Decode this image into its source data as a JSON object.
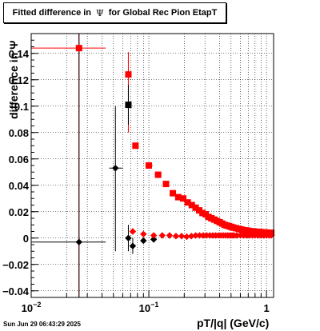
{
  "title": {
    "prefix": "Fitted difference in",
    "symbol": "Ψ",
    "suffix": "for Global Rec Pion EtapT"
  },
  "timestamp": "Sun Jun 29 06:43:29 2025",
  "chart_data": {
    "type": "scatter",
    "xlabel": "pT/|q| (GeV/c)",
    "ylabel": "difference in Ψ",
    "xscale": "log",
    "xlim": [
      0.01,
      1.15
    ],
    "ylim": [
      -0.045,
      0.155
    ],
    "grid": true,
    "x_ticks": [
      {
        "value": 0.01,
        "base": "10",
        "exp": "−2"
      },
      {
        "value": 0.1,
        "base": "10",
        "exp": "−1"
      },
      {
        "value": 1,
        "base": "1",
        "exp": ""
      }
    ],
    "y_ticks": [
      -0.04,
      -0.02,
      0,
      0.02,
      0.04,
      0.06,
      0.08,
      0.1,
      0.12,
      0.14
    ],
    "y_tick_labels": [
      "−0.04",
      "−0.02",
      "0",
      "0.02",
      "0.04",
      "0.06",
      "0.08",
      "0.1",
      "0.12",
      "0.14"
    ],
    "series": [
      {
        "color": "#ff0000",
        "marker": "square",
        "points": [
          {
            "x": 0.0255,
            "y": 0.144,
            "xlo": 0.01,
            "xhi": 0.043,
            "ylo": -0.045,
            "yhi": 0.155
          },
          {
            "x": 0.067,
            "y": 0.124,
            "ylo": 0.08,
            "yhi": 0.141
          },
          {
            "x": 0.077,
            "y": 0.07,
            "xlo": 0.073,
            "xhi": 0.08
          },
          {
            "x": 0.1,
            "y": 0.055,
            "xlo": 0.093,
            "xhi": 0.108
          },
          {
            "x": 0.12,
            "y": 0.048,
            "xlo": 0.112,
            "xhi": 0.128
          },
          {
            "x": 0.14,
            "y": 0.041
          },
          {
            "x": 0.16,
            "y": 0.034
          },
          {
            "x": 0.178,
            "y": 0.031
          },
          {
            "x": 0.196,
            "y": 0.03
          },
          {
            "x": 0.214,
            "y": 0.027
          },
          {
            "x": 0.232,
            "y": 0.025
          },
          {
            "x": 0.25,
            "y": 0.023
          },
          {
            "x": 0.268,
            "y": 0.021
          },
          {
            "x": 0.286,
            "y": 0.019
          },
          {
            "x": 0.304,
            "y": 0.018
          },
          {
            "x": 0.322,
            "y": 0.016
          },
          {
            "x": 0.34,
            "y": 0.015
          },
          {
            "x": 0.36,
            "y": 0.014
          },
          {
            "x": 0.38,
            "y": 0.013
          },
          {
            "x": 0.4,
            "y": 0.012
          },
          {
            "x": 0.42,
            "y": 0.011
          },
          {
            "x": 0.44,
            "y": 0.01
          },
          {
            "x": 0.46,
            "y": 0.0095
          },
          {
            "x": 0.48,
            "y": 0.009
          },
          {
            "x": 0.5,
            "y": 0.0085
          },
          {
            "x": 0.52,
            "y": 0.008
          },
          {
            "x": 0.55,
            "y": 0.0075
          },
          {
            "x": 0.58,
            "y": 0.007
          },
          {
            "x": 0.61,
            "y": 0.0065
          },
          {
            "x": 0.64,
            "y": 0.006
          },
          {
            "x": 0.67,
            "y": 0.0058
          },
          {
            "x": 0.7,
            "y": 0.0055
          },
          {
            "x": 0.74,
            "y": 0.0052
          },
          {
            "x": 0.78,
            "y": 0.005
          },
          {
            "x": 0.82,
            "y": 0.0048
          },
          {
            "x": 0.86,
            "y": 0.0046
          },
          {
            "x": 0.9,
            "y": 0.0045
          },
          {
            "x": 0.95,
            "y": 0.0043
          },
          {
            "x": 1.0,
            "y": 0.0042
          },
          {
            "x": 1.05,
            "y": 0.004
          },
          {
            "x": 1.1,
            "y": 0.004
          }
        ]
      },
      {
        "color": "#000000",
        "marker": "square",
        "points": [
          {
            "x": 0.067,
            "y": 0.101,
            "ylo": 0.086,
            "yhi": 0.116
          }
        ]
      },
      {
        "color": "#000000",
        "marker": "diamond",
        "points": [
          {
            "x": 0.0255,
            "y": -0.003,
            "xlo": 0.01,
            "xhi": 0.043,
            "ylo": -0.045,
            "yhi": 0.155
          },
          {
            "x": 0.052,
            "y": 0.053,
            "xlo": 0.046,
            "xhi": 0.06,
            "ylo": -0.01,
            "yhi": 0.1
          },
          {
            "x": 0.067,
            "y": 0.0,
            "ylo": -0.01,
            "yhi": 0.01
          },
          {
            "x": 0.073,
            "y": -0.006,
            "ylo": -0.012,
            "yhi": 0.0
          },
          {
            "x": 0.09,
            "y": -0.002,
            "xlo": 0.085,
            "xhi": 0.095
          },
          {
            "x": 0.11,
            "y": -0.001
          }
        ]
      },
      {
        "color": "#ff0000",
        "marker": "diamond",
        "points": [
          {
            "x": 0.073,
            "y": 0.005
          },
          {
            "x": 0.09,
            "y": 0.003
          },
          {
            "x": 0.11,
            "y": 0.002
          },
          {
            "x": 0.13,
            "y": 0.002
          },
          {
            "x": 0.15,
            "y": 0.002
          },
          {
            "x": 0.17,
            "y": 0.0015
          },
          {
            "x": 0.19,
            "y": 0.0015
          },
          {
            "x": 0.21,
            "y": 0.001
          },
          {
            "x": 0.23,
            "y": 0.0015
          },
          {
            "x": 0.25,
            "y": 0.002
          },
          {
            "x": 0.27,
            "y": 0.002
          },
          {
            "x": 0.29,
            "y": 0.002
          },
          {
            "x": 0.31,
            "y": 0.002
          },
          {
            "x": 0.33,
            "y": 0.002
          },
          {
            "x": 0.35,
            "y": 0.002
          },
          {
            "x": 0.37,
            "y": 0.002
          },
          {
            "x": 0.39,
            "y": 0.002
          },
          {
            "x": 0.41,
            "y": 0.002
          },
          {
            "x": 0.43,
            "y": 0.002
          },
          {
            "x": 0.45,
            "y": 0.002
          },
          {
            "x": 0.47,
            "y": 0.002
          },
          {
            "x": 0.49,
            "y": 0.002
          },
          {
            "x": 0.51,
            "y": 0.002
          },
          {
            "x": 0.53,
            "y": 0.002
          },
          {
            "x": 0.56,
            "y": 0.002
          },
          {
            "x": 0.6,
            "y": 0.002
          },
          {
            "x": 0.64,
            "y": 0.002
          },
          {
            "x": 0.68,
            "y": 0.002
          },
          {
            "x": 0.72,
            "y": 0.002
          },
          {
            "x": 0.76,
            "y": 0.002
          },
          {
            "x": 0.8,
            "y": 0.002
          },
          {
            "x": 0.85,
            "y": 0.002
          },
          {
            "x": 0.9,
            "y": 0.002
          },
          {
            "x": 0.95,
            "y": 0.002
          },
          {
            "x": 1.0,
            "y": 0.002
          },
          {
            "x": 1.05,
            "y": 0.002
          },
          {
            "x": 1.1,
            "y": 0.002
          }
        ]
      }
    ]
  }
}
